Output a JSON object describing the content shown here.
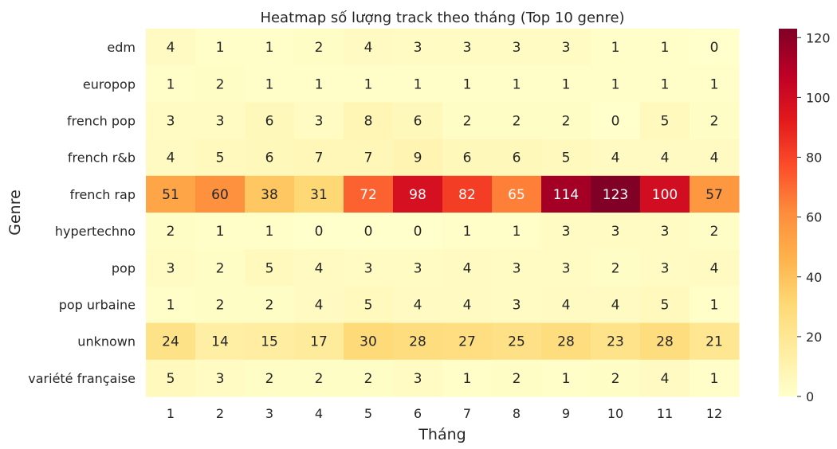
{
  "chart_data": {
    "type": "heatmap",
    "title": "Heatmap số lượng track theo tháng (Top 10 genre)",
    "xlabel": "Tháng",
    "ylabel": "Genre",
    "x_categories": [
      "1",
      "2",
      "3",
      "4",
      "5",
      "6",
      "7",
      "8",
      "9",
      "10",
      "11",
      "12"
    ],
    "y_categories": [
      "edm",
      "europop",
      "french pop",
      "french r&b",
      "french rap",
      "hypertechno",
      "pop",
      "pop urbaine",
      "unknown",
      "variété française"
    ],
    "values": [
      [
        4,
        1,
        1,
        2,
        4,
        3,
        3,
        3,
        3,
        1,
        1,
        0
      ],
      [
        1,
        2,
        1,
        1,
        1,
        1,
        1,
        1,
        1,
        1,
        1,
        1
      ],
      [
        3,
        3,
        6,
        3,
        8,
        6,
        2,
        2,
        2,
        0,
        5,
        2
      ],
      [
        4,
        5,
        6,
        7,
        7,
        9,
        6,
        6,
        5,
        4,
        4,
        4
      ],
      [
        51,
        60,
        38,
        31,
        72,
        98,
        82,
        65,
        114,
        123,
        100,
        57
      ],
      [
        2,
        1,
        1,
        0,
        0,
        0,
        1,
        1,
        3,
        3,
        3,
        2
      ],
      [
        3,
        2,
        5,
        4,
        3,
        3,
        4,
        3,
        3,
        2,
        3,
        4
      ],
      [
        1,
        2,
        2,
        4,
        5,
        4,
        4,
        3,
        4,
        4,
        5,
        1
      ],
      [
        24,
        14,
        15,
        17,
        30,
        28,
        27,
        25,
        28,
        23,
        28,
        21
      ],
      [
        5,
        3,
        2,
        2,
        2,
        3,
        1,
        2,
        1,
        2,
        4,
        1
      ]
    ],
    "colorbar": {
      "min": 0,
      "max": 123,
      "ticks": [
        0,
        20,
        40,
        60,
        80,
        100,
        120
      ],
      "colormap": "YlOrRd"
    },
    "annotations": true,
    "grid": false
  }
}
